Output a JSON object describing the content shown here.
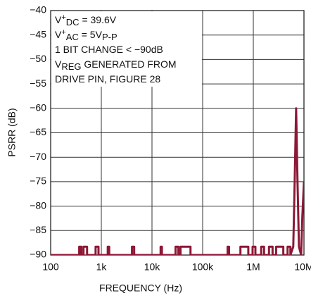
{
  "chart_data": {
    "type": "line",
    "xlabel": "FREQUENCY (Hz)",
    "ylabel": "PSRR (dB)",
    "xscale": "log",
    "grid": true,
    "color": "#8c1836",
    "xlim": [
      100,
      10000000
    ],
    "ylim": [
      -90,
      -40
    ],
    "xticks": [
      100,
      {
        "value": 1000,
        "label": "1k"
      },
      {
        "value": 10000,
        "label": "10k"
      },
      {
        "value": 100000,
        "label": "100k"
      },
      {
        "value": 1000000,
        "label": "1M"
      },
      {
        "value": 10000000,
        "label": "10M"
      }
    ],
    "yticks": [
      {
        "value": -90,
        "label": "−90"
      },
      {
        "value": -85,
        "label": "−85"
      },
      {
        "value": -80,
        "label": "−80"
      },
      {
        "value": -75,
        "label": "−75"
      },
      {
        "value": -70,
        "label": "−70"
      },
      {
        "value": -65,
        "label": "−65"
      },
      {
        "value": -60,
        "label": "−60"
      },
      {
        "value": -55,
        "label": "−55"
      },
      {
        "value": -50,
        "label": "−50"
      },
      {
        "value": -45,
        "label": "−45"
      },
      {
        "value": -40,
        "label": "−40"
      }
    ],
    "annotation": [
      [
        {
          "text": "V"
        },
        {
          "text": "+",
          "shift": "super"
        },
        {
          "text": "DC",
          "shift": "sub"
        },
        {
          "text": " = 39.6V"
        }
      ],
      [
        {
          "text": "V"
        },
        {
          "text": "+",
          "shift": "super"
        },
        {
          "text": "AC",
          "shift": "sub"
        },
        {
          "text": " = 5V"
        },
        {
          "text": "P-P",
          "shift": "sub"
        }
      ],
      [
        {
          "text": "1 BIT CHANGE < −90dB"
        }
      ],
      [
        {
          "text": "V"
        },
        {
          "text": "REG",
          "shift": "sub"
        },
        {
          "text": " GENERATED FROM"
        }
      ],
      [
        {
          "text": "DRIVE PIN, FIGURE 28"
        }
      ]
    ],
    "x": [
      100,
      366,
      366,
      403,
      403,
      445,
      445,
      523,
      523,
      771,
      771,
      879,
      879,
      1340,
      1340,
      1430,
      1430,
      4030,
      4030,
      4450,
      4450,
      14800,
      14800,
      15700,
      15700,
      29200,
      29200,
      33200,
      33200,
      36600,
      36600,
      57600,
      57600,
      311000,
      311000,
      332000,
      332000,
      557000,
      557000,
      797000,
      797000,
      968000,
      968000,
      1100000,
      1100000,
      1430000,
      1430000,
      1630000,
      1630000,
      2040000,
      2040000,
      2400000,
      2400000,
      2820000,
      2820000,
      3910000,
      3910000,
      4750000,
      4750000,
      5400000,
      5400000,
      6150000,
      6560000,
      7000000,
      7460000,
      7960000,
      8790000,
      9300000,
      10000000
    ],
    "values": [
      -90,
      -90,
      -88.3,
      -88.3,
      -90,
      -90,
      -88.3,
      -88.3,
      -90,
      -90,
      -88.3,
      -88.3,
      -90,
      -90,
      -88.3,
      -88.3,
      -90,
      -90,
      -88.3,
      -88.3,
      -90,
      -90,
      -88.3,
      -88.3,
      -90,
      -90,
      -88.3,
      -88.3,
      -90,
      -90,
      -88.3,
      -88.3,
      -90,
      -90,
      -88.3,
      -88.3,
      -90,
      -90,
      -88.3,
      -88.3,
      -90,
      -90,
      -88.3,
      -88.3,
      -90,
      -90,
      -88.3,
      -88.3,
      -90,
      -90,
      -88.3,
      -88.3,
      -90,
      -90,
      -88.3,
      -88.3,
      -90,
      -90,
      -88.3,
      -88.3,
      -90,
      -88.3,
      -75,
      -60,
      -75,
      -88.3,
      -90,
      -82,
      -75
    ]
  }
}
